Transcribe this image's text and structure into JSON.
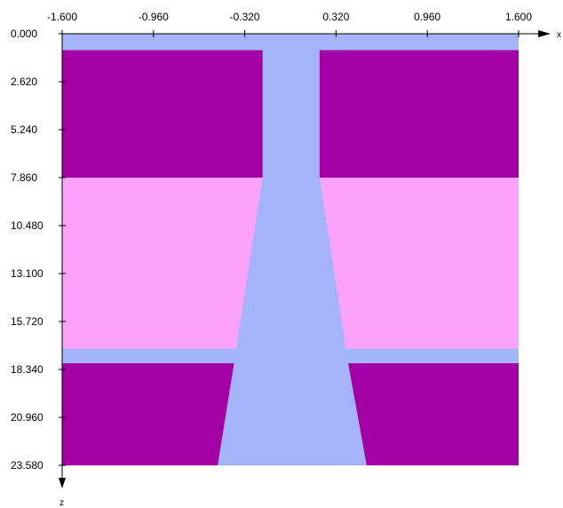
{
  "diagram": {
    "x_axis": {
      "name": "x",
      "range": [
        -1.6,
        1.6
      ],
      "ticks": [
        {
          "value": -1.6,
          "label": "-1.600"
        },
        {
          "value": -0.96,
          "label": "-0.960"
        },
        {
          "value": -0.32,
          "label": "-0.320"
        },
        {
          "value": 0.32,
          "label": "0.320"
        },
        {
          "value": 0.96,
          "label": "0.960"
        },
        {
          "value": 1.6,
          "label": "1.600"
        }
      ]
    },
    "z_axis": {
      "name": "z",
      "range": [
        0,
        23.58
      ],
      "direction": "downward",
      "ticks": [
        {
          "value": 0,
          "label": "0.000"
        },
        {
          "value": 2.62,
          "label": "2.620"
        },
        {
          "value": 5.24,
          "label": "5.240"
        },
        {
          "value": 7.86,
          "label": "7.860"
        },
        {
          "value": 10.48,
          "label": "10.480"
        },
        {
          "value": 13.1,
          "label": "13.100"
        },
        {
          "value": 15.72,
          "label": "15.720"
        },
        {
          "value": 18.34,
          "label": "18.340"
        },
        {
          "value": 20.96,
          "label": "20.960"
        },
        {
          "value": 23.58,
          "label": "23.580"
        }
      ]
    },
    "colors": {
      "background_region": "#a4b4f8",
      "dark_layer": "#a400a6",
      "light_layer": "#fba3fb",
      "axis": "#000000"
    },
    "regions": [
      {
        "name": "background-region",
        "color": "background_region",
        "polygon": [
          [
            -1.6,
            0
          ],
          [
            1.6,
            0
          ],
          [
            1.6,
            23.58
          ],
          [
            -1.6,
            23.58
          ]
        ]
      },
      {
        "name": "top-left-dark-layer",
        "color": "dark_layer",
        "polygon": [
          [
            -1.6,
            0.9
          ],
          [
            -0.195,
            0.9
          ],
          [
            -0.195,
            7.86
          ],
          [
            -1.6,
            7.86
          ]
        ]
      },
      {
        "name": "top-right-dark-layer",
        "color": "dark_layer",
        "polygon": [
          [
            0.205,
            0.9
          ],
          [
            1.6,
            0.9
          ],
          [
            1.6,
            7.86
          ],
          [
            0.205,
            7.86
          ]
        ]
      },
      {
        "name": "middle-left-light-layer",
        "color": "light_layer",
        "polygon": [
          [
            -1.6,
            7.86
          ],
          [
            -0.195,
            7.86
          ],
          [
            -0.38,
            17.2
          ],
          [
            -1.6,
            17.2
          ]
        ]
      },
      {
        "name": "middle-right-light-layer",
        "color": "light_layer",
        "polygon": [
          [
            0.205,
            7.86
          ],
          [
            1.6,
            7.86
          ],
          [
            1.6,
            17.2
          ],
          [
            0.39,
            17.2
          ]
        ]
      },
      {
        "name": "bottom-left-dark-layer",
        "color": "dark_layer",
        "polygon": [
          [
            -1.6,
            18.0
          ],
          [
            -0.395,
            18.0
          ],
          [
            -0.51,
            23.58
          ],
          [
            -1.6,
            23.58
          ]
        ]
      },
      {
        "name": "bottom-right-dark-layer",
        "color": "dark_layer",
        "polygon": [
          [
            0.405,
            18.0
          ],
          [
            1.6,
            18.0
          ],
          [
            1.6,
            23.58
          ],
          [
            0.535,
            23.58
          ]
        ]
      }
    ]
  }
}
